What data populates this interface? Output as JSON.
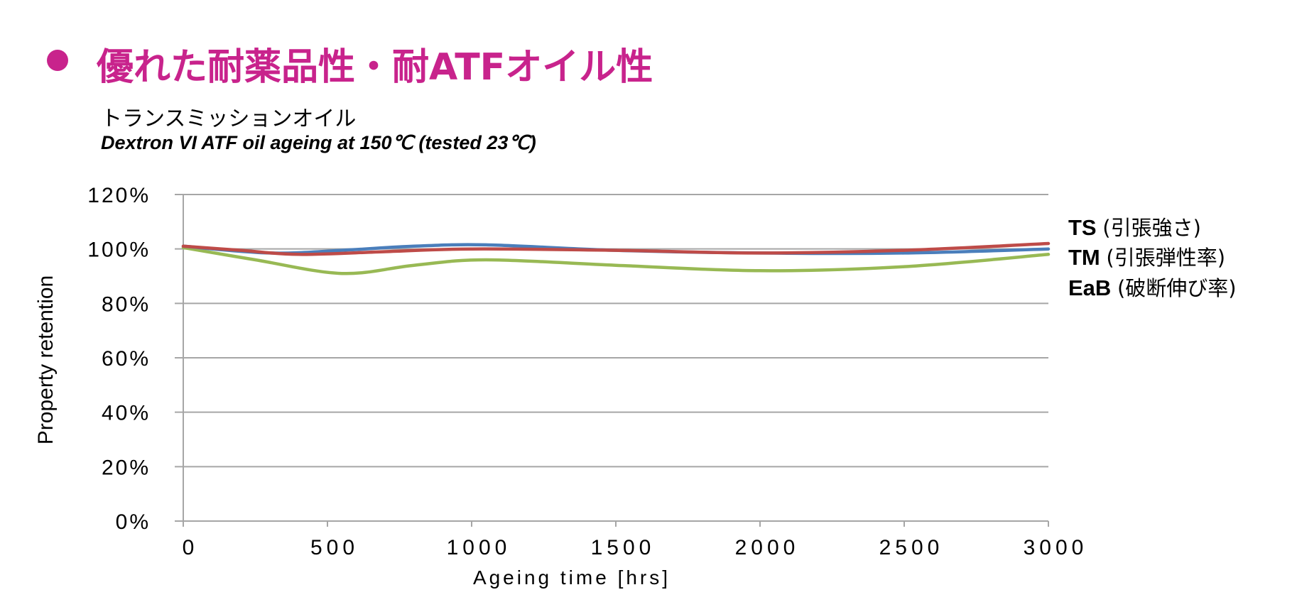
{
  "heading": {
    "title": "優れた耐薬品性・耐ATFオイル性",
    "bullet_color": "#c8238c"
  },
  "subtitle": {
    "line1": "トランスミッションオイル",
    "line2": "Dextron VI ATF oil ageing at 150℃ (tested 23℃)"
  },
  "legend": [
    {
      "key": "TS",
      "desc": "(引張強さ)"
    },
    {
      "key": "TM",
      "desc": "(引張弾性率)"
    },
    {
      "key": "EaB",
      "desc": "(破断伸び率)"
    }
  ],
  "chart_data": {
    "type": "line",
    "xlabel": "Ageing time [hrs]",
    "ylabel": "Property retention",
    "xlim": [
      0,
      3000
    ],
    "ylim": [
      0,
      120
    ],
    "x_ticks": [
      "0",
      "500",
      "1000",
      "1500",
      "2000",
      "2500",
      "3000"
    ],
    "y_ticks": [
      "0%",
      "20%",
      "40%",
      "60%",
      "80%",
      "100%",
      "120%"
    ],
    "grid": true,
    "legend_position": "right",
    "series": [
      {
        "name": "TS",
        "color": "#4a7ebb",
        "x": [
          0,
          300,
          550,
          800,
          1050,
          1500,
          2000,
          2500,
          3000
        ],
        "y": [
          101,
          98.5,
          99.5,
          101,
          101.5,
          99.5,
          98.5,
          98.5,
          100
        ]
      },
      {
        "name": "TM",
        "color": "#be4b48",
        "x": [
          0,
          200,
          400,
          700,
          1000,
          1500,
          2000,
          2500,
          3000
        ],
        "y": [
          101,
          99.5,
          98,
          99,
          100,
          99.5,
          98.5,
          99.5,
          102
        ]
      },
      {
        "name": "EaB",
        "color": "#98b954",
        "x": [
          0,
          250,
          550,
          800,
          1050,
          1500,
          2000,
          2500,
          3000
        ],
        "y": [
          100.5,
          96,
          91,
          94,
          96,
          94,
          92,
          93.5,
          98
        ]
      }
    ]
  }
}
